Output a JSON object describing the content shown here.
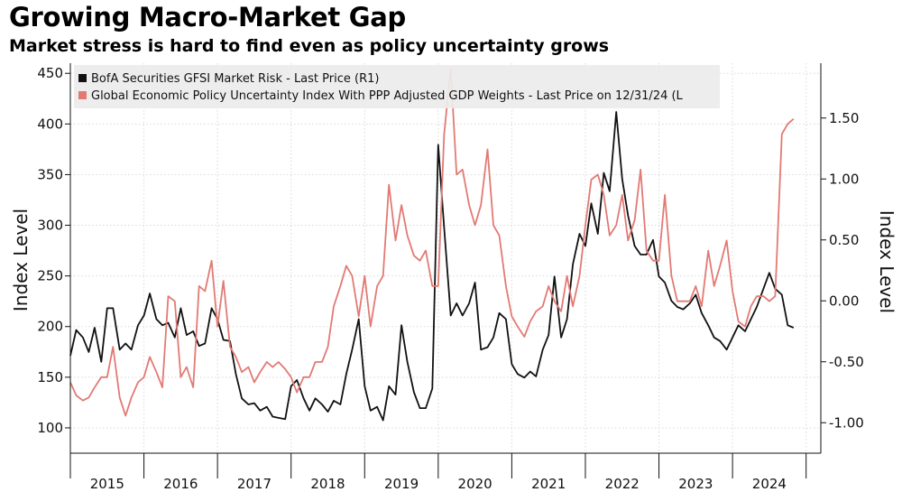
{
  "header": {
    "title": "Growing Macro-Market Gap",
    "subtitle": "Market stress is hard to find even as policy uncertainty grows"
  },
  "chart_data": {
    "type": "line",
    "title": "Growing Macro-Market Gap",
    "subtitle": "Market stress is hard to find even as policy uncertainty grows",
    "ylabel_left": "Index Level",
    "ylabel_right": "Index Level",
    "ylim_left": [
      75,
      460
    ],
    "ylim_right": [
      -1.25,
      1.95
    ],
    "yticks_left": [
      100,
      150,
      200,
      250,
      300,
      350,
      400,
      450
    ],
    "yticks_right": [
      -1.0,
      -0.5,
      0.0,
      0.5,
      1.0,
      1.5
    ],
    "ytick_labels_right": [
      "-1.00",
      "-0.50",
      "0.00",
      "0.50",
      "1.00",
      "1.50"
    ],
    "x_range": [
      2015.0,
      2025.2
    ],
    "x_tick_labels": [
      "2015",
      "2016",
      "2017",
      "2018",
      "2019",
      "2020",
      "2021",
      "2022",
      "2023",
      "2024"
    ],
    "grid": true,
    "legend_position": "top-left",
    "colors": {
      "market_risk": "#111111",
      "policy_uncertainty": "#e27a74",
      "grid": "#d9d9d9"
    },
    "series": [
      {
        "name": "BofA Securities GFSI Market Risk - Last Price (R1)",
        "axis": "right",
        "color": "#111111",
        "x": [
          2015.0,
          2015.08,
          2015.17,
          2015.25,
          2015.33,
          2015.42,
          2015.5,
          2015.58,
          2015.67,
          2015.75,
          2015.83,
          2015.92,
          2016.0,
          2016.08,
          2016.17,
          2016.25,
          2016.33,
          2016.42,
          2016.5,
          2016.58,
          2016.67,
          2016.75,
          2016.83,
          2016.92,
          2017.0,
          2017.08,
          2017.17,
          2017.25,
          2017.33,
          2017.42,
          2017.5,
          2017.58,
          2017.67,
          2017.75,
          2017.83,
          2017.92,
          2018.0,
          2018.08,
          2018.17,
          2018.25,
          2018.33,
          2018.42,
          2018.5,
          2018.58,
          2018.67,
          2018.75,
          2018.83,
          2018.92,
          2019.0,
          2019.08,
          2019.17,
          2019.25,
          2019.33,
          2019.42,
          2019.5,
          2019.58,
          2019.67,
          2019.75,
          2019.83,
          2019.92,
          2020.0,
          2020.08,
          2020.17,
          2020.25,
          2020.33,
          2020.42,
          2020.5,
          2020.58,
          2020.67,
          2020.75,
          2020.83,
          2020.92,
          2021.0,
          2021.08,
          2021.17,
          2021.25,
          2021.33,
          2021.42,
          2021.5,
          2021.58,
          2021.67,
          2021.75,
          2021.83,
          2021.92,
          2022.0,
          2022.08,
          2022.17,
          2022.25,
          2022.33,
          2022.42,
          2022.5,
          2022.58,
          2022.67,
          2022.75,
          2022.83,
          2022.92,
          2023.0,
          2023.08,
          2023.17,
          2023.25,
          2023.33,
          2023.42,
          2023.5,
          2023.58,
          2023.67,
          2023.75,
          2023.83,
          2023.92,
          2024.0,
          2024.08,
          2024.17,
          2024.25,
          2024.33,
          2024.42,
          2024.5,
          2024.58,
          2024.67,
          2024.75,
          2024.83
        ],
        "values": [
          -0.45,
          -0.24,
          -0.3,
          -0.42,
          -0.22,
          -0.5,
          -0.06,
          -0.06,
          -0.4,
          -0.35,
          -0.4,
          -0.2,
          -0.12,
          0.06,
          -0.15,
          -0.2,
          -0.18,
          -0.3,
          -0.06,
          -0.28,
          -0.25,
          -0.37,
          -0.35,
          -0.06,
          -0.15,
          -0.32,
          -0.33,
          -0.6,
          -0.8,
          -0.85,
          -0.84,
          -0.9,
          -0.87,
          -0.95,
          -0.96,
          -0.97,
          -0.7,
          -0.65,
          -0.8,
          -0.9,
          -0.8,
          -0.85,
          -0.91,
          -0.82,
          -0.85,
          -0.6,
          -0.4,
          -0.15,
          -0.7,
          -0.9,
          -0.87,
          -0.98,
          -0.7,
          -0.77,
          -0.2,
          -0.5,
          -0.75,
          -0.88,
          -0.88,
          -0.72,
          1.28,
          0.6,
          -0.12,
          -0.02,
          -0.12,
          -0.02,
          0.15,
          -0.4,
          -0.38,
          -0.3,
          -0.1,
          -0.15,
          -0.52,
          -0.6,
          -0.63,
          -0.58,
          -0.62,
          -0.4,
          -0.28,
          0.2,
          -0.3,
          -0.15,
          0.3,
          0.55,
          0.45,
          0.8,
          0.55,
          1.05,
          0.9,
          1.55,
          1.0,
          0.7,
          0.45,
          0.38,
          0.38,
          0.5,
          0.2,
          0.15,
          0.0,
          -0.05,
          -0.07,
          -0.02,
          0.05,
          -0.1,
          -0.2,
          -0.3,
          -0.33,
          -0.4,
          -0.3,
          -0.2,
          -0.25,
          -0.15,
          -0.05,
          0.1,
          0.23,
          0.1,
          0.05,
          -0.2,
          -0.22
        ]
      },
      {
        "name": "Global Economic Policy Uncertainty Index With PPP Adjusted GDP Weights - Last Price on 12/31/24 (L",
        "axis": "left",
        "color": "#e27a74",
        "x": [
          2015.0,
          2015.08,
          2015.17,
          2015.25,
          2015.33,
          2015.42,
          2015.5,
          2015.58,
          2015.67,
          2015.75,
          2015.83,
          2015.92,
          2016.0,
          2016.08,
          2016.17,
          2016.25,
          2016.33,
          2016.42,
          2016.5,
          2016.58,
          2016.67,
          2016.75,
          2016.83,
          2016.92,
          2017.0,
          2017.08,
          2017.17,
          2017.25,
          2017.33,
          2017.42,
          2017.5,
          2017.58,
          2017.67,
          2017.75,
          2017.83,
          2017.92,
          2018.0,
          2018.08,
          2018.17,
          2018.25,
          2018.33,
          2018.42,
          2018.5,
          2018.58,
          2018.67,
          2018.75,
          2018.83,
          2018.92,
          2019.0,
          2019.08,
          2019.17,
          2019.25,
          2019.33,
          2019.42,
          2019.5,
          2019.58,
          2019.67,
          2019.75,
          2019.83,
          2019.92,
          2020.0,
          2020.08,
          2020.17,
          2020.25,
          2020.33,
          2020.42,
          2020.5,
          2020.58,
          2020.67,
          2020.75,
          2020.83,
          2020.92,
          2021.0,
          2021.08,
          2021.17,
          2021.25,
          2021.33,
          2021.42,
          2021.5,
          2021.58,
          2021.67,
          2021.75,
          2021.83,
          2021.92,
          2022.0,
          2022.08,
          2022.17,
          2022.25,
          2022.33,
          2022.42,
          2022.5,
          2022.58,
          2022.67,
          2022.75,
          2022.83,
          2022.92,
          2023.0,
          2023.08,
          2023.17,
          2023.25,
          2023.33,
          2023.42,
          2023.5,
          2023.58,
          2023.67,
          2023.75,
          2023.83,
          2023.92,
          2024.0,
          2024.08,
          2024.17,
          2024.25,
          2024.33,
          2024.42,
          2024.5,
          2024.58,
          2024.67,
          2024.75,
          2024.83
        ],
        "values": [
          145,
          132,
          127,
          130,
          140,
          150,
          150,
          180,
          130,
          112,
          130,
          145,
          150,
          170,
          155,
          140,
          230,
          225,
          150,
          160,
          140,
          240,
          235,
          265,
          200,
          245,
          180,
          170,
          155,
          160,
          145,
          155,
          165,
          160,
          165,
          158,
          150,
          135,
          150,
          150,
          165,
          165,
          180,
          220,
          240,
          260,
          250,
          210,
          250,
          200,
          240,
          250,
          340,
          285,
          320,
          290,
          270,
          265,
          275,
          240,
          240,
          390,
          455,
          350,
          355,
          320,
          300,
          320,
          375,
          300,
          290,
          240,
          210,
          200,
          190,
          205,
          215,
          220,
          240,
          225,
          215,
          250,
          220,
          250,
          300,
          345,
          350,
          330,
          290,
          300,
          330,
          285,
          305,
          355,
          275,
          265,
          265,
          330,
          250,
          225,
          225,
          225,
          240,
          220,
          275,
          240,
          260,
          285,
          235,
          205,
          200,
          220,
          230,
          230,
          225,
          230,
          390,
          400,
          405
        ]
      }
    ]
  }
}
